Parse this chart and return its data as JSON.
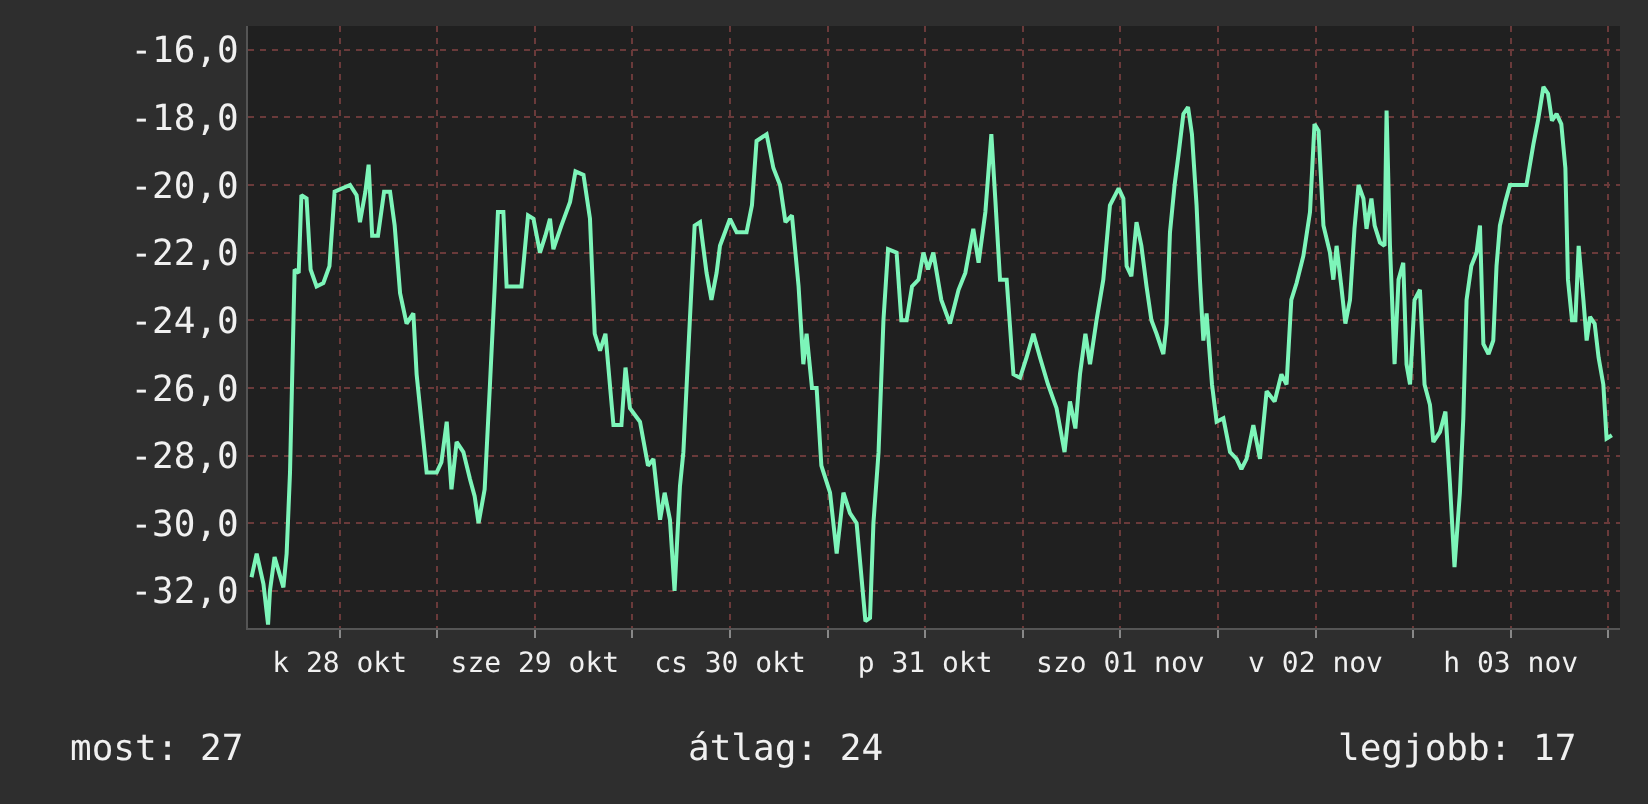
{
  "chart_data": {
    "type": "line",
    "x": [
      "--10-28T01:10",
      "--10-28T01:48",
      "--10-28T02:38",
      "--10-28T03:12",
      "--10-28T03:26",
      "--10-28T04:00",
      "--10-28T05:05",
      "--10-28T05:29",
      "--10-28T05:54",
      "--10-28T06:28",
      "--10-28T06:58",
      "--10-28T07:18",
      "--10-28T07:56",
      "--10-28T08:26",
      "--10-28T09:10",
      "--10-28T10:00",
      "--10-28T10:45",
      "--10-28T11:23",
      "--10-28T13:17",
      "--10-28T14:05",
      "--10-28T14:30",
      "--10-28T15:10",
      "--10-28T15:34",
      "--10-28T16:00",
      "--10-28T16:43",
      "--10-28T17:28",
      "--10-28T18:12",
      "--10-28T18:46",
      "--10-28T19:26",
      "--10-28T20:14",
      "--10-28T21:04",
      "--10-28T21:28",
      "--10-28T22:42",
      "--10-28T23:56",
      "--10-29T00:31",
      "--10-29T01:10",
      "--10-29T01:45",
      "--10-29T02:23",
      "--10-29T03:13",
      "--10-29T04:02",
      "--10-29T04:36",
      "--10-29T05:05",
      "--10-29T05:50",
      "--10-29T06:29",
      "--10-29T07:03",
      "--10-29T07:28",
      "--10-29T08:08",
      "--10-29T08:32",
      "--10-29T10:21",
      "--10-29T11:10",
      "--10-29T11:50",
      "--10-29T12:38",
      "--10-29T13:18",
      "--10-29T13:52",
      "--10-29T14:17",
      "--10-29T15:16",
      "--10-29T16:20",
      "--10-29T17:00",
      "--10-29T17:59",
      "--10-29T18:47",
      "--10-29T19:22",
      "--10-29T20:01",
      "--10-29T20:41",
      "--10-29T21:40",
      "--10-29T22:39",
      "--10-29T23:09",
      "--10-29T23:42",
      "--10-30T00:56",
      "--10-30T01:55",
      "--10-30T02:35",
      "--10-30T03:24",
      "--10-30T03:58",
      "--10-30T04:37",
      "--10-30T05:11",
      "--10-30T05:51",
      "--10-30T06:16",
      "--10-30T06:55",
      "--10-30T07:39",
      "--10-30T08:19",
      "--10-30T09:07",
      "--10-30T09:43",
      "--10-30T10:21",
      "--10-30T10:46",
      "--10-30T12:00",
      "--10-30T12:49",
      "--10-30T14:02",
      "--10-30T14:42",
      "--10-30T15:16",
      "--10-30T16:30",
      "--10-30T17:20",
      "--10-30T18:09",
      "--10-30T18:49",
      "--10-30T19:37",
      "--10-30T20:26",
      "--10-30T21:01",
      "--10-30T21:25",
      "--10-30T22:05",
      "--10-30T22:39",
      "--10-30T23:14",
      "--10-31T00:18",
      "--10-31T01:07",
      "--10-31T01:57",
      "--10-31T02:45",
      "--10-31T03:34",
      "--10-31T04:10",
      "--10-31T04:39",
      "--10-31T05:13",
      "--10-31T05:38",
      "--10-31T06:16",
      "--10-31T06:52",
      "--10-31T07:26",
      "--10-31T08:29",
      "--10-31T09:04",
      "--10-31T09:43",
      "--10-31T10:23",
      "--10-31T11:11",
      "--10-31T11:47",
      "--10-31T12:21",
      "--10-31T13:00",
      "--10-31T13:59",
      "--10-31T15:03",
      "--10-31T16:06",
      "--10-31T16:56",
      "--10-31T17:55",
      "--10-31T18:34",
      "--10-31T19:24",
      "--10-31T20:08",
      "--10-31T20:37",
      "--10-31T21:12",
      "--10-31T22:01",
      "--10-31T22:51",
      "--10-31T23:40",
      "--11-01T00:28",
      "--11-01T01:18",
      "--11-01T02:07",
      "--11-01T03:06",
      "--11-01T04:09",
      "--11-01T05:08",
      "--11-01T05:48",
      "--11-01T06:28",
      "--11-01T07:02",
      "--11-01T07:42",
      "--11-01T08:16",
      "--11-01T09:04",
      "--11-01T09:54",
      "--11-01T10:43",
      "--11-01T11:47",
      "--11-01T12:22",
      "--11-01T12:46",
      "--11-01T13:21",
      "--11-01T13:59",
      "--11-01T14:35",
      "--11-01T15:13",
      "--11-01T15:49",
      "--11-01T16:27",
      "--11-01T17:17",
      "--11-01T17:41",
      "--11-01T18:06",
      "--11-01T18:40",
      "--11-01T19:09",
      "--11-01T19:45",
      "--11-01T20:19",
      "--11-01T20:48",
      "--11-01T21:22",
      "--11-01T21:47",
      "--11-01T22:12",
      "--11-01T22:36",
      "--11-01T23:16",
      "--11-01T23:50",
      "--11-02T00:40",
      "--11-02T01:29",
      "--11-02T02:17",
      "--11-02T02:53",
      "--11-02T03:31",
      "--11-02T04:21",
      "--11-02T05:10",
      "--11-02T05:59",
      "--11-02T06:58",
      "--11-02T07:48",
      "--11-02T08:26",
      "--11-02T09:01",
      "--11-02T09:40",
      "--11-02T10:30",
      "--11-02T11:19",
      "--11-02T11:52",
      "--11-02T12:22",
      "--11-02T12:58",
      "--11-02T13:46",
      "--11-02T14:11",
      "--11-02T14:35",
      "--11-02T15:10",
      "--11-02T15:40",
      "--11-02T16:14",
      "--11-02T16:47",
      "--11-02T17:17",
      "--11-02T17:53",
      "--11-02T18:16",
      "--11-02T18:52",
      "--11-02T19:16",
      "--11-02T19:55",
      "--11-02T20:29",
      "--11-02T20:44",
      "--11-02T21:09",
      "--11-02T21:43",
      "--11-02T22:12",
      "--11-02T22:47",
      "--11-02T23:11",
      "--11-02T23:37",
      "--11-03T00:10",
      "--11-03T00:50",
      "--11-03T01:24",
      "--11-03T02:04",
      "--11-03T02:29",
      "--11-03T03:18",
      "--11-03T03:58",
      "--11-03T04:31",
      "--11-03T05:05",
      "--11-03T05:45",
      "--11-03T06:10",
      "--11-03T06:34",
      "--11-03T07:09",
      "--11-03T07:48",
      "--11-03T08:13",
      "--11-03T08:38",
      "--11-03T09:16",
      "--11-03T09:51",
      "--11-03T10:15",
      "--11-03T10:40",
      "--11-03T11:20",
      "--11-03T11:54",
      "--11-03T13:56",
      "--11-03T14:47",
      "--11-03T15:21",
      "--11-03T16:01",
      "--11-03T16:35",
      "--11-03T17:04",
      "--11-03T17:38",
      "--11-03T18:13",
      "--11-03T18:43",
      "--11-03T19:02",
      "--11-03T19:32",
      "--11-03T19:57",
      "--11-03T20:21",
      "--11-03T20:56",
      "--11-03T21:20",
      "--11-03T21:45",
      "--11-03T22:19",
      "--11-03T22:48",
      "--11-03T23:23",
      "--11-03T23:47",
      "--11-04T00:26"
    ],
    "series": [
      {
        "color": "#7df5b9",
        "values": [
          -31.6,
          -30.9,
          -31.8,
          -33.0,
          -32.0,
          -31.0,
          -31.9,
          -30.9,
          -28.5,
          -22.5,
          -22.6,
          -20.3,
          -20.4,
          -22.5,
          -23.0,
          -22.9,
          -22.4,
          -20.2,
          -20.0,
          -20.3,
          -21.1,
          -20.2,
          -19.4,
          -21.5,
          -21.5,
          -20.2,
          -20.2,
          -21.2,
          -23.2,
          -24.1,
          -23.8,
          -25.6,
          -28.5,
          -28.5,
          -28.2,
          -27.0,
          -29.0,
          -27.6,
          -27.9,
          -28.7,
          -29.2,
          -30.0,
          -29.0,
          -25.9,
          -23.1,
          -20.8,
          -20.8,
          -23.0,
          -23.0,
          -20.9,
          -21.0,
          -22.0,
          -21.5,
          -21.0,
          -21.9,
          -21.2,
          -20.5,
          -19.6,
          -19.7,
          -21.0,
          -24.4,
          -24.9,
          -24.4,
          -27.1,
          -27.1,
          -25.4,
          -26.6,
          -27.0,
          -28.3,
          -28.1,
          -29.9,
          -29.1,
          -29.9,
          -32.0,
          -28.9,
          -27.9,
          -24.7,
          -21.2,
          -21.1,
          -22.6,
          -23.4,
          -22.6,
          -21.8,
          -21.0,
          -21.4,
          -21.4,
          -20.6,
          -18.7,
          -18.5,
          -19.5,
          -20.0,
          -21.1,
          -20.9,
          -23.0,
          -25.3,
          -24.4,
          -26.0,
          -26.0,
          -28.3,
          -29.1,
          -30.9,
          -29.1,
          -29.7,
          -30.0,
          -31.6,
          -32.9,
          -32.8,
          -30.0,
          -27.9,
          -24.0,
          -21.9,
          -22.0,
          -24.0,
          -24.0,
          -23.0,
          -22.8,
          -22.0,
          -22.5,
          -22.0,
          -23.4,
          -24.1,
          -23.1,
          -22.6,
          -21.3,
          -22.3,
          -20.8,
          -18.5,
          -20.4,
          -22.8,
          -22.8,
          -25.6,
          -25.7,
          -25.1,
          -24.4,
          -25.1,
          -25.9,
          -26.6,
          -27.9,
          -26.4,
          -27.2,
          -25.6,
          -24.4,
          -25.3,
          -24.0,
          -22.8,
          -20.6,
          -20.1,
          -20.4,
          -22.4,
          -22.7,
          -21.1,
          -21.8,
          -23.0,
          -24.0,
          -24.4,
          -25.0,
          -24.1,
          -21.4,
          -20.0,
          -19.1,
          -17.9,
          -17.7,
          -18.5,
          -20.6,
          -22.8,
          -24.6,
          -23.8,
          -25.9,
          -27.0,
          -26.9,
          -27.9,
          -28.1,
          -28.4,
          -28.1,
          -27.1,
          -28.1,
          -26.1,
          -26.4,
          -25.6,
          -25.9,
          -23.4,
          -22.9,
          -22.1,
          -20.8,
          -18.2,
          -18.4,
          -21.2,
          -22.0,
          -22.8,
          -21.8,
          -23.0,
          -24.1,
          -23.4,
          -21.3,
          -20.0,
          -20.4,
          -21.3,
          -20.4,
          -21.2,
          -21.7,
          -21.8,
          -17.8,
          -21.8,
          -25.3,
          -22.8,
          -22.3,
          -25.3,
          -25.9,
          -23.4,
          -23.1,
          -25.9,
          -26.5,
          -27.6,
          -27.3,
          -26.7,
          -28.8,
          -31.3,
          -29.1,
          -26.9,
          -23.4,
          -22.4,
          -22.0,
          -21.2,
          -24.7,
          -25.0,
          -24.6,
          -22.4,
          -21.2,
          -20.5,
          -20.0,
          -20.0,
          -18.8,
          -18.1,
          -17.1,
          -17.3,
          -18.1,
          -17.9,
          -18.2,
          -19.5,
          -22.8,
          -24.0,
          -24.0,
          -21.8,
          -23.4,
          -24.6,
          -23.9,
          -24.1,
          -25.1,
          -25.9,
          -27.5,
          -27.4
        ]
      }
    ],
    "xlim": [
      "--10-28T00:44",
      "--11-04T01:26"
    ],
    "xticks": [
      {
        "value": "--10-28T12:00",
        "label": "k 28 okt"
      },
      {
        "value": "--10-29T00:00",
        "label": null
      },
      {
        "value": "--10-29T12:00",
        "label": "sze 29 okt"
      },
      {
        "value": "--10-30T00:00",
        "label": null
      },
      {
        "value": "--10-30T12:00",
        "label": "cs 30 okt"
      },
      {
        "value": "--10-31T00:00",
        "label": null
      },
      {
        "value": "--10-31T12:00",
        "label": "p 31 okt"
      },
      {
        "value": "--11-01T00:00",
        "label": null
      },
      {
        "value": "--11-01T12:00",
        "label": "szo 01 nov"
      },
      {
        "value": "--11-02T00:00",
        "label": null
      },
      {
        "value": "--11-02T12:00",
        "label": "v 02 nov"
      },
      {
        "value": "--11-03T00:00",
        "label": null
      },
      {
        "value": "--11-03T12:00",
        "label": "h 03 nov"
      },
      {
        "value": "--11-04T00:00",
        "label": null
      }
    ],
    "ylim": [
      -33.1,
      -15.3
    ],
    "yticks": [
      {
        "value": -16,
        "label": "-16,0"
      },
      {
        "value": -18,
        "label": "-18,0"
      },
      {
        "value": -20,
        "label": "-20,0"
      },
      {
        "value": -22,
        "label": "-22,0"
      },
      {
        "value": -24,
        "label": "-24,0"
      },
      {
        "value": -26,
        "label": "-26,0"
      },
      {
        "value": -28,
        "label": "-28,0"
      },
      {
        "value": -30,
        "label": "-30,0"
      },
      {
        "value": -32,
        "label": "-32,0"
      }
    ],
    "grid": true,
    "legend": false,
    "marker": "none",
    "line_style": "solid",
    "annotations": [
      "most: 27",
      "átlag: 24",
      "legjobb: 17"
    ]
  }
}
